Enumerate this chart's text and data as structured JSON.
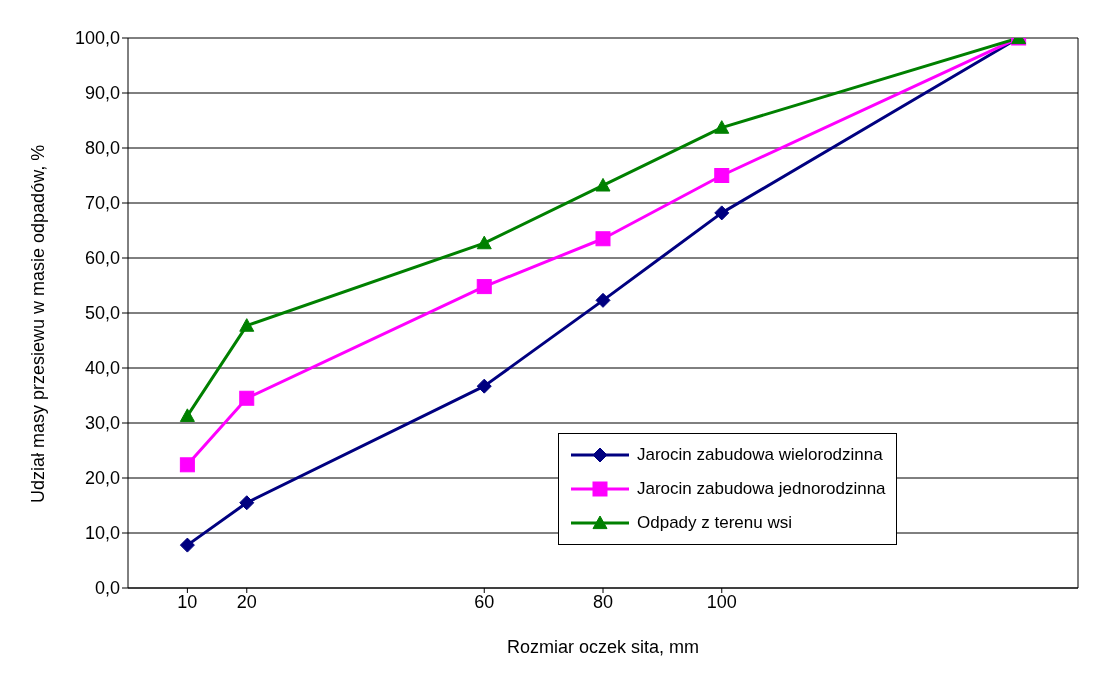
{
  "chart_data": {
    "type": "line",
    "xlabel": "Rozmiar oczek sita, mm",
    "ylabel": "Udział masy przesiewu w masie odpadów, %",
    "series": [
      {
        "name": "Jarocin zabudowa wielorodzinna",
        "color": "#000080",
        "marker": "diamond",
        "x": [
          10,
          20,
          60,
          80,
          100,
          150
        ],
        "values": [
          7.8,
          15.5,
          36.7,
          52.3,
          68.2,
          100
        ]
      },
      {
        "name": "Jarocin zabudowa jednorodzinna",
        "color": "#ff00ff",
        "marker": "square",
        "x": [
          10,
          20,
          60,
          80,
          100,
          150
        ],
        "values": [
          22.4,
          34.5,
          54.8,
          63.5,
          75.0,
          100
        ]
      },
      {
        "name": "Odpady z terenu wsi",
        "color": "#008000",
        "marker": "triangle",
        "x": [
          10,
          20,
          60,
          80,
          100,
          150
        ],
        "values": [
          31.3,
          47.7,
          62.7,
          73.2,
          83.7,
          100
        ]
      }
    ],
    "xlim": [
      0,
      160
    ],
    "xticks": [
      10,
      20,
      60,
      80,
      100
    ],
    "ylim": [
      0,
      100
    ],
    "yticks": [
      {
        "value": 0,
        "label": "0,0"
      },
      {
        "value": 10,
        "label": "10,0"
      },
      {
        "value": 20,
        "label": "20,0"
      },
      {
        "value": 30,
        "label": "30,0"
      },
      {
        "value": 40,
        "label": "40,0"
      },
      {
        "value": 50,
        "label": "50,0"
      },
      {
        "value": 60,
        "label": "60,0"
      },
      {
        "value": 70,
        "label": "70,0"
      },
      {
        "value": 80,
        "label": "80,0"
      },
      {
        "value": 90,
        "label": "90,0"
      },
      {
        "value": 100,
        "label": "100,0"
      }
    ],
    "grid": "y",
    "legend": "bottom right",
    "line_style": "solid"
  }
}
